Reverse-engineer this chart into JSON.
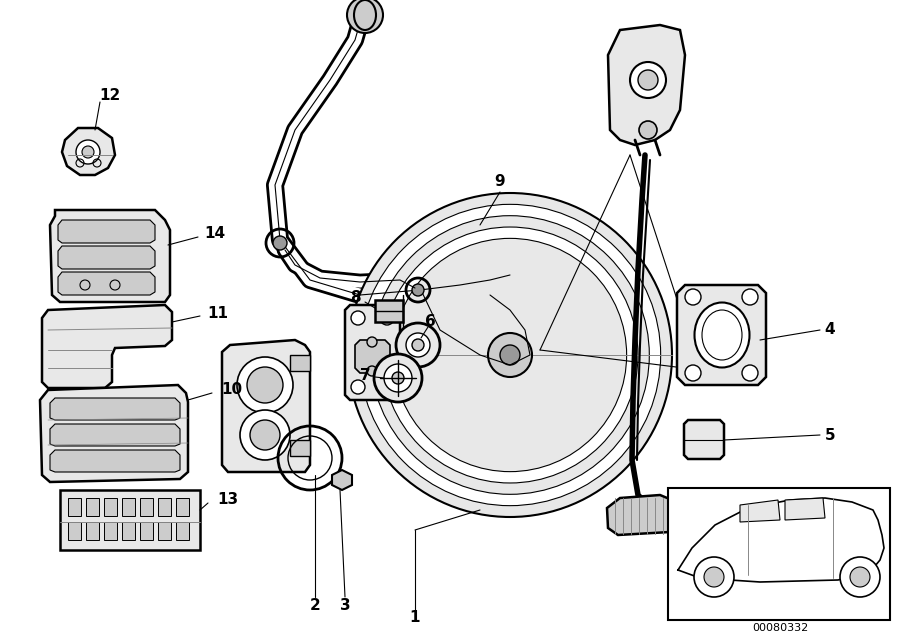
{
  "background_color": "#ffffff",
  "line_color": "#000000",
  "diagram_code": "00080332",
  "fig_width": 9.0,
  "fig_height": 6.37,
  "dpi": 100,
  "gray_light": "#e8e8e8",
  "gray_mid": "#cccccc",
  "gray_dark": "#999999"
}
